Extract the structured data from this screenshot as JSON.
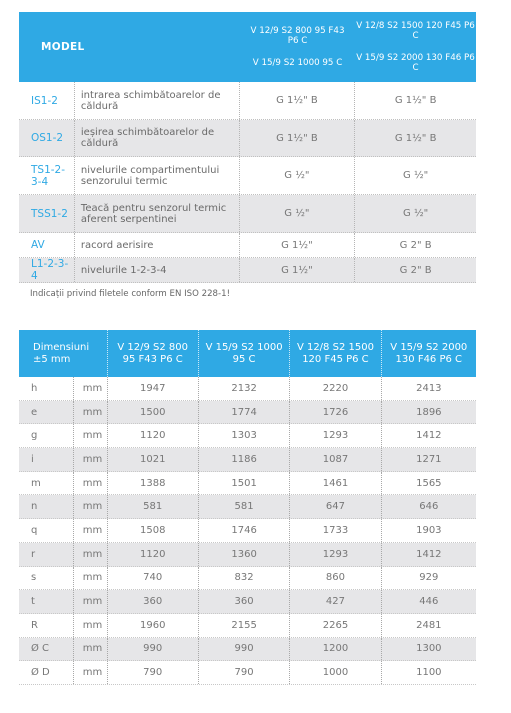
{
  "table1": {
    "header": {
      "model_label": "MODEL",
      "col1": [
        "V 12/9 S2 800 95 F43",
        "P6 C",
        "V 15/9 S2 1000 95 C"
      ],
      "col2": [
        "V 12/8 S2 1500 120 F45 P6 C",
        "V 15/9 S2 2000 130 F46 P6 C"
      ]
    },
    "rows": [
      {
        "code": "IS1-2",
        "desc": "intrarea schimbătoarelor de căldură",
        "v1": "G 1½\" B",
        "v2": "G 1½\" B"
      },
      {
        "code": "OS1-2",
        "desc": "ieșirea schimbătoarelor de căldură",
        "v1": "G 1½\" B",
        "v2": "G 1½\" B"
      },
      {
        "code": "TS1-2-3-4",
        "desc": "nivelurile compartimentului senzorului termic",
        "v1": "G ½\"",
        "v2": "G ½\""
      },
      {
        "code": "TSS1-2",
        "desc": "Teacă pentru senzorul termic aferent serpentinei",
        "v1": "G ½\"",
        "v2": "G ½\""
      },
      {
        "code": "AV",
        "desc": "racord aerisire",
        "v1": "G 1½\"",
        "v2": "G 2\" B"
      },
      {
        "code": "L1-2-3-4",
        "desc": "nivelurile 1-2-3-4",
        "v1": "G 1½\"",
        "v2": "G 2\" B"
      }
    ]
  },
  "note": "Indicații privind filetele conform EN ISO 228-1!",
  "table2": {
    "header": {
      "dim": [
        "Dimensiuni",
        "±5 mm"
      ],
      "c1": [
        "V 12/9 S2 800",
        "95 F43 P6 C"
      ],
      "c2": [
        "V 15/9 S2 1000",
        "95 C"
      ],
      "c3": [
        "V 12/8 S2 1500",
        "120 F45 P6 C"
      ],
      "c4": [
        "V 15/9  S2 2000",
        "130 F46 P6 C"
      ]
    },
    "rows": [
      {
        "sym": "h",
        "unit": "mm",
        "a": "1947",
        "b": "2132",
        "c": "2220",
        "d": "2413"
      },
      {
        "sym": "e",
        "unit": "mm",
        "a": "1500",
        "b": "1774",
        "c": "1726",
        "d": "1896"
      },
      {
        "sym": "g",
        "unit": "mm",
        "a": "1120",
        "b": "1303",
        "c": "1293",
        "d": "1412"
      },
      {
        "sym": "i",
        "unit": "mm",
        "a": "1021",
        "b": "1186",
        "c": "1087",
        "d": "1271"
      },
      {
        "sym": "m",
        "unit": "mm",
        "a": "1388",
        "b": "1501",
        "c": "1461",
        "d": "1565"
      },
      {
        "sym": "n",
        "unit": "mm",
        "a": "581",
        "b": "581",
        "c": "647",
        "d": "646"
      },
      {
        "sym": "q",
        "unit": "mm",
        "a": "1508",
        "b": "1746",
        "c": "1733",
        "d": "1903"
      },
      {
        "sym": "r",
        "unit": "mm",
        "a": "1120",
        "b": "1360",
        "c": "1293",
        "d": "1412"
      },
      {
        "sym": "s",
        "unit": "mm",
        "a": "740",
        "b": "832",
        "c": "860",
        "d": "929"
      },
      {
        "sym": "t",
        "unit": "mm",
        "a": "360",
        "b": "360",
        "c": "427",
        "d": "446"
      },
      {
        "sym": "R",
        "unit": "mm",
        "a": "1960",
        "b": "2155",
        "c": "2265",
        "d": "2481"
      },
      {
        "sym": "Ø C",
        "unit": "mm",
        "a": "990",
        "b": "990",
        "c": "1200",
        "d": "1300"
      },
      {
        "sym": "Ø D",
        "unit": "mm",
        "a": "790",
        "b": "790",
        "c": "1000",
        "d": "1100"
      }
    ]
  }
}
